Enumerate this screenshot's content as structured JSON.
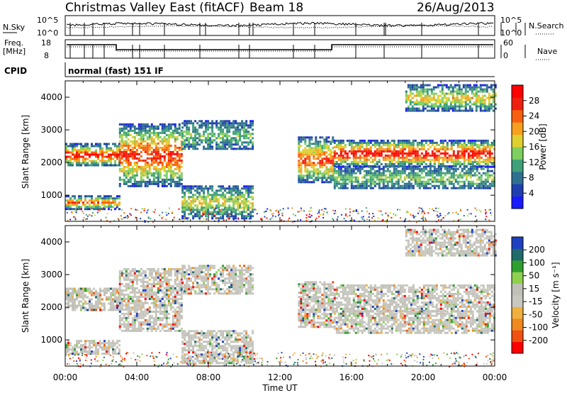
{
  "header": {
    "title": "Christmas Valley East (fitACF)",
    "beam": "Beam 18",
    "date": "26/Aug/2013"
  },
  "top_panels": {
    "nsky_label": "N.Sky",
    "nsky_ticks": [
      "10^5",
      "10^0"
    ],
    "nsearch_label": "N.Search",
    "freq_label_1": "Freq.",
    "freq_label_2": "[MHz]",
    "freq_ticks": [
      "18",
      "8"
    ],
    "nave_ticks": [
      "60",
      "0"
    ],
    "nave_label": "Nave",
    "cpid_label": "CPID",
    "cpid_value": "normal (fast) 151 IF"
  },
  "colors": {
    "power_scale": [
      "#1a1aff",
      "#1f3fb0",
      "#2f6f8f",
      "#3fa07a",
      "#7fcf60",
      "#dfd030",
      "#f7a020",
      "#f76010",
      "#f02010",
      "#ff0000"
    ],
    "velocity_scale": [
      "#1e3fbf",
      "#1f6a6a",
      "#2f9f2f",
      "#8fd04f",
      "#c0c0b8",
      "#c8c8c0",
      "#f0b040",
      "#f08a20",
      "#f05010",
      "#ff0000"
    ]
  },
  "chart_data": [
    {
      "type": "heatmap",
      "name": "power",
      "ylabel": "Slant Range [km]",
      "ylim": [
        200,
        4500
      ],
      "yticks": [
        "1000",
        "2000",
        "3000",
        "4000"
      ],
      "colorbar_label": "Power [dB]",
      "colorbar_ticks": [
        "28",
        "24",
        "20",
        "16",
        "12",
        "8",
        "4"
      ],
      "bands": [
        {
          "t0": 0,
          "t1": 3,
          "r0": 1900,
          "r1": 2600,
          "level": 0.85
        },
        {
          "t0": 0,
          "t1": 3,
          "r0": 600,
          "r1": 1000,
          "level": 0.7
        },
        {
          "t0": 3,
          "t1": 6.5,
          "r0": 1300,
          "r1": 3200,
          "level": 0.8
        },
        {
          "t0": 6.5,
          "t1": 10.5,
          "r0": 2400,
          "r1": 3300,
          "level": 0.3
        },
        {
          "t0": 6.5,
          "t1": 10.5,
          "r0": 300,
          "r1": 1300,
          "level": 0.45
        },
        {
          "t0": 13,
          "t1": 15,
          "r0": 1400,
          "r1": 2800,
          "level": 0.75
        },
        {
          "t0": 15,
          "t1": 24,
          "r0": 1900,
          "r1": 2700,
          "level": 0.9
        },
        {
          "t0": 15,
          "t1": 24,
          "r0": 1200,
          "r1": 1900,
          "level": 0.35
        },
        {
          "t0": 19,
          "t1": 24,
          "r0": 3600,
          "r1": 4400,
          "level": 0.5
        }
      ]
    },
    {
      "type": "heatmap",
      "name": "velocity",
      "xlabel": "Time UT",
      "ylabel": "Slant Range [km]",
      "ylim": [
        200,
        4500
      ],
      "yticks": [
        "1000",
        "2000",
        "3000",
        "4000"
      ],
      "xticks": [
        "00:00",
        "04:00",
        "08:00",
        "12:00",
        "16:00",
        "20:00",
        "00:00"
      ],
      "colorbar_label": "Velocity [m s⁻¹]",
      "colorbar_ticks": [
        "200",
        "100",
        "50",
        "15",
        "-15",
        "-50",
        "-100",
        "-200"
      ],
      "bands": [
        {
          "t0": 0,
          "t1": 3,
          "r0": 1900,
          "r1": 2600,
          "level": 0.5
        },
        {
          "t0": 0,
          "t1": 3,
          "r0": 600,
          "r1": 1000,
          "level": 0.5
        },
        {
          "t0": 3,
          "t1": 6.5,
          "r0": 1300,
          "r1": 3200,
          "level": 0.5
        },
        {
          "t0": 6.5,
          "t1": 10.5,
          "r0": 2400,
          "r1": 3300,
          "level": 0.55
        },
        {
          "t0": 6.5,
          "t1": 10.5,
          "r0": 300,
          "r1": 1300,
          "level": 0.35
        },
        {
          "t0": 13,
          "t1": 15,
          "r0": 1400,
          "r1": 2800,
          "level": 0.45
        },
        {
          "t0": 15,
          "t1": 24,
          "r0": 1900,
          "r1": 2700,
          "level": 0.5
        },
        {
          "t0": 15,
          "t1": 24,
          "r0": 1200,
          "r1": 1900,
          "level": 0.5
        },
        {
          "t0": 19,
          "t1": 24,
          "r0": 3600,
          "r1": 4400,
          "level": 0.5
        }
      ]
    }
  ]
}
